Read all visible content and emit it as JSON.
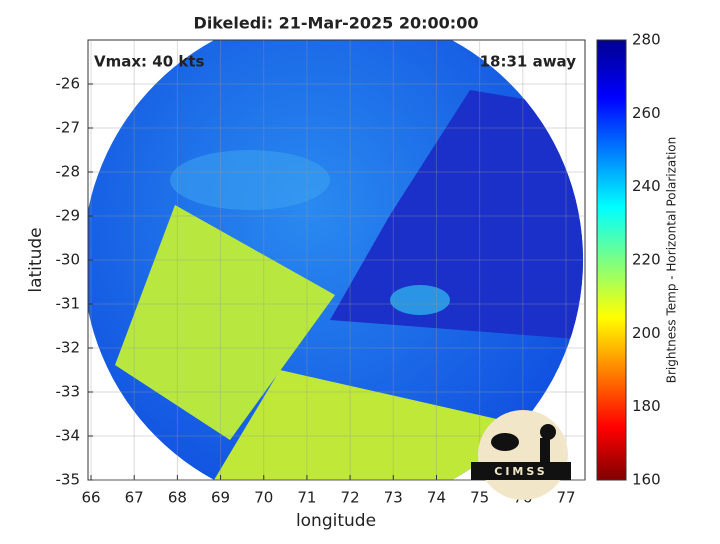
{
  "chart_data": {
    "type": "map",
    "title": "Dikeledi: 21-Mar-2025 20:00:00",
    "annotations": [
      "Vmax: 40 kts",
      "18:31 away"
    ],
    "xlabel": "longitude",
    "ylabel": "latitude",
    "xlim": [
      65.93,
      77.44
    ],
    "xticks": [
      66,
      67,
      68,
      69,
      70,
      71,
      72,
      73,
      74,
      75,
      76,
      77
    ],
    "ylim": [
      -35,
      -25
    ],
    "yticks": [
      -26,
      -27,
      -28,
      -29,
      -30,
      -31,
      -32,
      -33,
      -34,
      -35
    ],
    "grid": true,
    "colorbar": {
      "label": "Brightness Temp - Horizontal Polarization",
      "lim": [
        160,
        280
      ],
      "ticks": [
        160,
        180,
        200,
        220,
        240,
        260,
        280
      ]
    },
    "logo": "CIMSS"
  }
}
